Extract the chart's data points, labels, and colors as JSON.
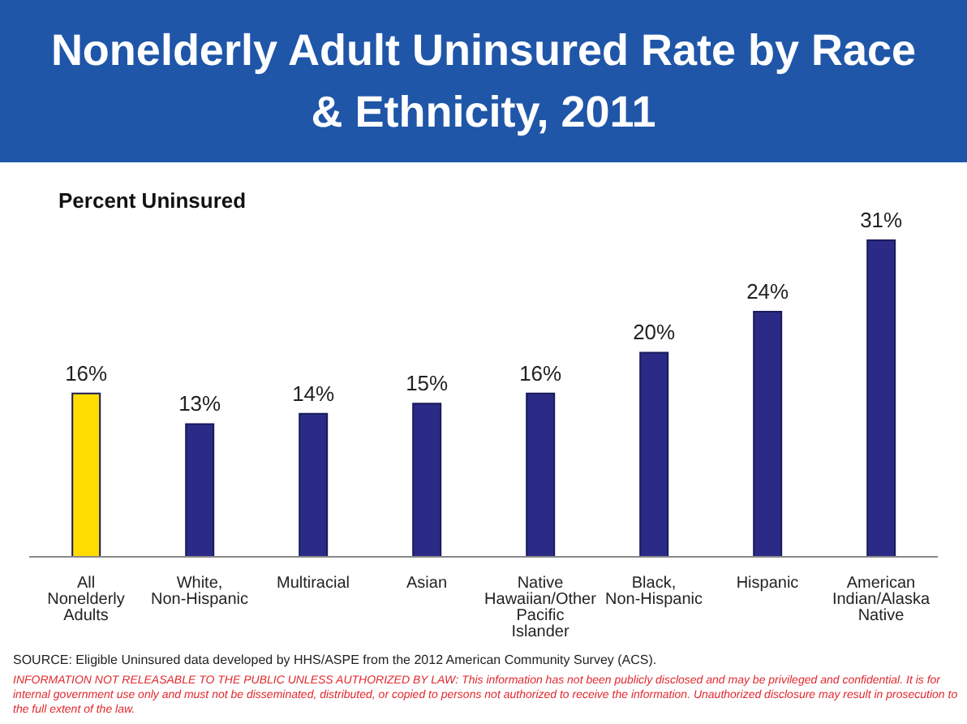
{
  "chart_data": {
    "type": "bar",
    "title": "Nonelderly Adult Uninsured Rate by Race & Ethnicity, 2011",
    "ylabel": "Percent Uninsured",
    "categories": [
      "All Nonelderly Adults",
      "White, Non-Hispanic",
      "Multiracial",
      "Asian",
      "Native Hawaiian/Other Pacific Islander",
      "Black, Non-Hispanic",
      "Hispanic",
      "American Indian/Alaska Native"
    ],
    "values": [
      16,
      13,
      14,
      15,
      16,
      20,
      24,
      31
    ],
    "value_labels": [
      "16%",
      "13%",
      "14%",
      "15%",
      "16%",
      "20%",
      "24%",
      "31%"
    ],
    "colors": [
      "#ffdd00",
      "#2b2b87",
      "#2b2b87",
      "#2b2b87",
      "#2b2b87",
      "#2b2b87",
      "#2b2b87",
      "#2b2b87"
    ],
    "grid": false,
    "legend": false,
    "annotations": [
      "SOURCE: Eligible Uninsured data developed by HHS/ASPE from the 2012 American Community Survey (ACS).",
      "INFORMATION NOT RELEASABLE TO THE PUBLIC UNLESS AUTHORIZED BY LAW: This information has not been publicly disclosed and may be privileged and confidential.  It is for internal government use only and must not be disseminated, distributed, or copied to persons not authorized to receive the information.  Unauthorized disclosure may result in prosecution to the full extent of the law."
    ]
  }
}
